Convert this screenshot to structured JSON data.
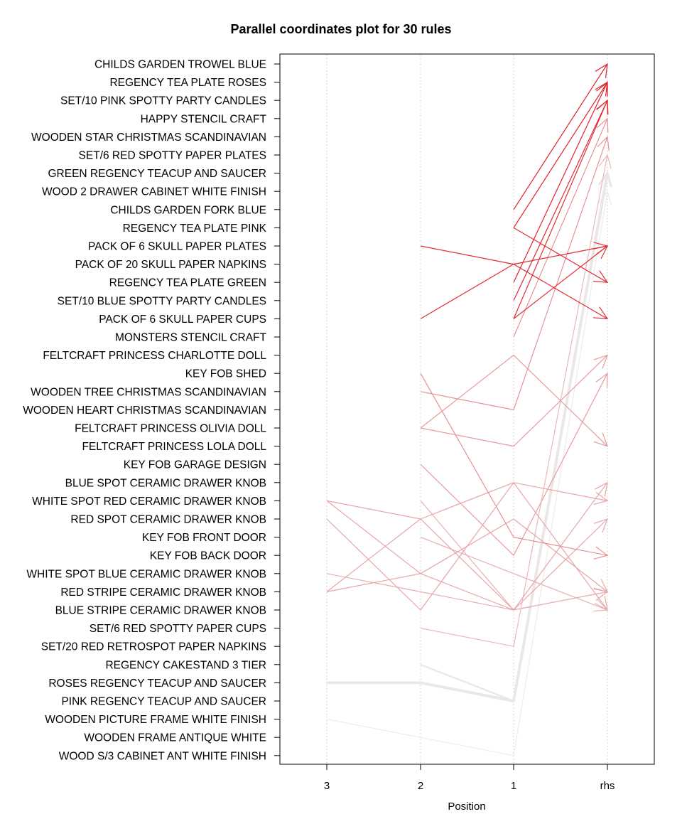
{
  "chart_data": {
    "type": "parallel_coordinates",
    "title": "Parallel coordinates plot for 30 rules",
    "xlabel": "Position",
    "x_categories": [
      "3",
      "2",
      "1",
      "rhs"
    ],
    "items": [
      "CHILDS GARDEN TROWEL BLUE",
      "REGENCY TEA PLATE ROSES",
      "SET/10 PINK SPOTTY PARTY CANDLES",
      "HAPPY STENCIL CRAFT",
      "WOODEN STAR CHRISTMAS SCANDINAVIAN",
      "SET/6 RED SPOTTY PAPER PLATES",
      "GREEN REGENCY TEACUP AND SAUCER",
      "WOOD 2 DRAWER CABINET WHITE FINISH",
      "CHILDS GARDEN FORK BLUE",
      "REGENCY TEA PLATE PINK",
      "PACK OF 6 SKULL PAPER PLATES",
      "PACK OF 20 SKULL PAPER NAPKINS",
      "REGENCY TEA PLATE GREEN",
      "SET/10 BLUE SPOTTY PARTY CANDLES",
      "PACK OF 6 SKULL PAPER CUPS",
      "MONSTERS STENCIL CRAFT",
      "FELTCRAFT PRINCESS CHARLOTTE DOLL",
      "KEY FOB  SHED",
      "WOODEN TREE CHRISTMAS SCANDINAVIAN",
      "WOODEN HEART CHRISTMAS SCANDINAVIAN",
      "FELTCRAFT PRINCESS OLIVIA DOLL",
      "FELTCRAFT PRINCESS LOLA DOLL",
      "KEY FOB  GARAGE DESIGN",
      "BLUE SPOT CERAMIC DRAWER KNOB",
      "WHITE SPOT RED CERAMIC DRAWER KNOB",
      "RED SPOT CERAMIC DRAWER KNOB",
      "KEY FOB  FRONT  DOOR",
      "KEY FOB  BACK DOOR",
      "WHITE SPOT BLUE CERAMIC DRAWER KNOB",
      "RED STRIPE CERAMIC DRAWER KNOB",
      "BLUE STRIPE CERAMIC DRAWER KNOB",
      "SET/6 RED SPOTTY PAPER CUPS",
      "SET/20 RED RETROSPOT PAPER NAPKINS",
      "REGENCY CAKESTAND 3 TIER",
      "ROSES REGENCY TEACUP AND SAUCER",
      "PINK REGENCY TEACUP AND SAUCER",
      "WOODEN PICTURE FRAME WHITE FINISH",
      "WOODEN FRAME ANTIQUE WHITE",
      "WOOD S/3 CABINET ANT WHITE FINISH"
    ],
    "color_scale": {
      "low": "#ebebeb",
      "high": "#e0222a"
    },
    "rules": [
      {
        "lhs": [
          null,
          null,
          8
        ],
        "rhs": 0,
        "intensity": 1.0,
        "width": 1.2
      },
      {
        "lhs": [
          null,
          null,
          9
        ],
        "rhs": 1,
        "intensity": 1.0,
        "width": 1.2
      },
      {
        "lhs": [
          null,
          null,
          12
        ],
        "rhs": 1,
        "intensity": 1.0,
        "width": 1.2
      },
      {
        "lhs": [
          null,
          null,
          13
        ],
        "rhs": 2,
        "intensity": 0.97,
        "width": 1.2
      },
      {
        "lhs": [
          null,
          null,
          14
        ],
        "rhs": 2,
        "intensity": 0.95,
        "width": 1.2
      },
      {
        "lhs": [
          null,
          null,
          9
        ],
        "rhs": 12,
        "intensity": 0.95,
        "width": 1.2
      },
      {
        "lhs": [
          null,
          10,
          11
        ],
        "rhs": 14,
        "intensity": 0.95,
        "width": 1.2
      },
      {
        "lhs": [
          null,
          14,
          11
        ],
        "rhs": 10,
        "intensity": 0.95,
        "width": 1.2
      },
      {
        "lhs": [
          null,
          null,
          14
        ],
        "rhs": 10,
        "intensity": 0.92,
        "width": 1.2
      },
      {
        "lhs": [
          null,
          null,
          15
        ],
        "rhs": 3,
        "intensity": 0.45,
        "width": 1.2
      },
      {
        "lhs": [
          null,
          18,
          19
        ],
        "rhs": 4,
        "intensity": 0.45,
        "width": 1.2
      },
      {
        "lhs": [
          null,
          20,
          16
        ],
        "rhs": 21,
        "intensity": 0.4,
        "width": 1.2
      },
      {
        "lhs": [
          null,
          20,
          21
        ],
        "rhs": 16,
        "intensity": 0.4,
        "width": 1.2
      },
      {
        "lhs": [
          null,
          17,
          26
        ],
        "rhs": 27,
        "intensity": 0.45,
        "width": 1.2
      },
      {
        "lhs": [
          null,
          22,
          27
        ],
        "rhs": 17,
        "intensity": 0.4,
        "width": 1.2
      },
      {
        "lhs": [
          24,
          25,
          30
        ],
        "rhs": 23,
        "intensity": 0.35,
        "width": 1.2
      },
      {
        "lhs": [
          29,
          25,
          23
        ],
        "rhs": 24,
        "intensity": 0.35,
        "width": 1.2
      },
      {
        "lhs": [
          25,
          30,
          23
        ],
        "rhs": 30,
        "intensity": 0.35,
        "width": 1.2
      },
      {
        "lhs": [
          29,
          28,
          25
        ],
        "rhs": 29,
        "intensity": 0.35,
        "width": 1.2
      },
      {
        "lhs": [
          24,
          28,
          30
        ],
        "rhs": 25,
        "intensity": 0.35,
        "width": 1.2
      },
      {
        "lhs": [
          null,
          24,
          30
        ],
        "rhs": 29,
        "intensity": 0.3,
        "width": 1.2
      },
      {
        "lhs": [
          null,
          26,
          28
        ],
        "rhs": 30,
        "intensity": 0.3,
        "width": 1.2
      },
      {
        "lhs": [
          28,
          29,
          30
        ],
        "rhs": 29,
        "intensity": 0.3,
        "width": 1.2
      },
      {
        "lhs": [
          null,
          31,
          32
        ],
        "rhs": 5,
        "intensity": 0.25,
        "width": 1.2
      },
      {
        "lhs": [
          null,
          33,
          35
        ],
        "rhs": 6,
        "intensity": 0.02,
        "width": 2.2
      },
      {
        "lhs": [
          34,
          34,
          35
        ],
        "rhs": 6,
        "intensity": 0.02,
        "width": 4.0
      },
      {
        "lhs": [
          null,
          34,
          35
        ],
        "rhs": 6,
        "intensity": 0.02,
        "width": 3.0
      },
      {
        "lhs": [
          null,
          null,
          35
        ],
        "rhs": 6,
        "intensity": 0.02,
        "width": 2.5
      },
      {
        "lhs": [
          36,
          null,
          38
        ],
        "rhs": 7,
        "intensity": 0.0,
        "width": 1.0
      },
      {
        "lhs": [
          null,
          null,
          38
        ],
        "rhs": 7,
        "intensity": 0.0,
        "width": 1.0
      }
    ]
  }
}
